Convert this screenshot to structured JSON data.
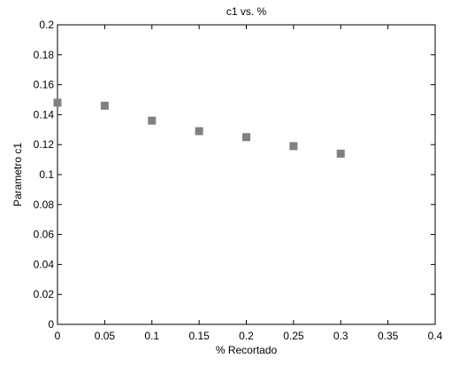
{
  "chart_data": {
    "type": "scatter",
    "title": "c1 vs. %",
    "xlabel": "% Recortado",
    "ylabel": "Parametro c1",
    "xlim": [
      0,
      0.4
    ],
    "ylim": [
      0,
      0.2
    ],
    "x_ticks": [
      "0",
      "0.05",
      "0.1",
      "0.15",
      "0.2",
      "0.25",
      "0.3",
      "0.35",
      "0.4"
    ],
    "y_ticks": [
      "0",
      "0.02",
      "0.04",
      "0.06",
      "0.08",
      "0.1",
      "0.12",
      "0.14",
      "0.16",
      "0.18",
      "0.2"
    ],
    "grid": false,
    "marker": "square",
    "marker_color": "#808080",
    "series": [
      {
        "x": [
          0,
          0.05,
          0.1,
          0.15,
          0.2,
          0.25,
          0.3
        ],
        "y": [
          0.148,
          0.146,
          0.136,
          0.129,
          0.125,
          0.119,
          0.114
        ]
      }
    ]
  }
}
